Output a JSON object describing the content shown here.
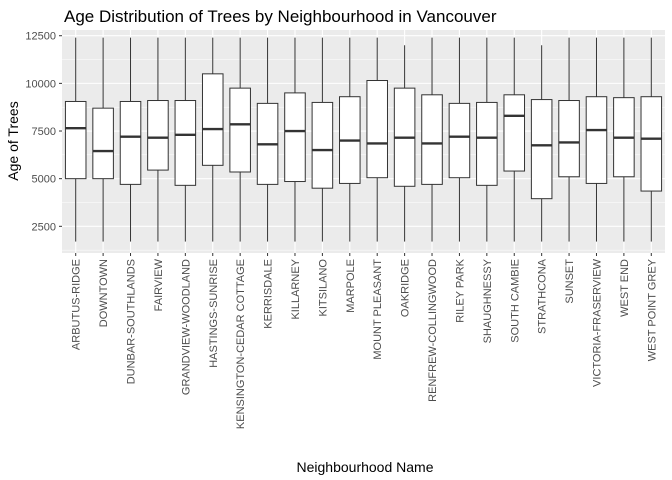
{
  "chart_data": {
    "type": "boxplot",
    "title": "Age Distribution of Trees by Neighbourhood in Vancouver",
    "xlabel": "Neighbourhood Name",
    "ylabel": "Age of Trees",
    "ylim": [
      1100,
      12800
    ],
    "yticks": [
      2500,
      5000,
      7500,
      10000,
      12500
    ],
    "grid": true,
    "legend": "none",
    "colors": {
      "panel": "#ebebeb",
      "grid_major": "#ffffff",
      "box_fill": "#ffffff",
      "box_line": "#333333",
      "tick_text": "#4d4d4d"
    },
    "categories": [
      "ARBUTUS-RIDGE",
      "DOWNTOWN",
      "DUNBAR-SOUTHLANDS",
      "FAIRVIEW",
      "GRANDVIEW-WOODLAND",
      "HASTINGS-SUNRISE",
      "KENSINGTON-CEDAR COTTAGE",
      "KERRISDALE",
      "KILLARNEY",
      "KITSILANO",
      "MARPOLE",
      "MOUNT PLEASANT",
      "OAKRIDGE",
      "RENFREW-COLLINGWOOD",
      "RILEY PARK",
      "SHAUGHNESSY",
      "SOUTH CAMBIE",
      "STRATHCONA",
      "SUNSET",
      "VICTORIA-FRASERVIEW",
      "WEST END",
      "WEST POINT GREY"
    ],
    "boxes": [
      {
        "min": 1700,
        "q1": 5000,
        "median": 7650,
        "q3": 9050,
        "max": 12400
      },
      {
        "min": 1700,
        "q1": 5000,
        "median": 6450,
        "q3": 8700,
        "max": 12400
      },
      {
        "min": 1700,
        "q1": 4700,
        "median": 7200,
        "q3": 9050,
        "max": 12400
      },
      {
        "min": 1700,
        "q1": 5450,
        "median": 7150,
        "q3": 9100,
        "max": 12400
      },
      {
        "min": 1700,
        "q1": 4650,
        "median": 7300,
        "q3": 9100,
        "max": 12400
      },
      {
        "min": 1700,
        "q1": 5700,
        "median": 7600,
        "q3": 10500,
        "max": 12400
      },
      {
        "min": 1700,
        "q1": 5350,
        "median": 7850,
        "q3": 9750,
        "max": 12400
      },
      {
        "min": 1700,
        "q1": 4700,
        "median": 6800,
        "q3": 8950,
        "max": 12400
      },
      {
        "min": 1700,
        "q1": 4850,
        "median": 7500,
        "q3": 9500,
        "max": 12400
      },
      {
        "min": 1700,
        "q1": 4500,
        "median": 6500,
        "q3": 9000,
        "max": 12400
      },
      {
        "min": 1700,
        "q1": 4750,
        "median": 7000,
        "q3": 9300,
        "max": 12400
      },
      {
        "min": 1700,
        "q1": 5050,
        "median": 6850,
        "q3": 10150,
        "max": 12400
      },
      {
        "min": 1700,
        "q1": 4600,
        "median": 7150,
        "q3": 9750,
        "max": 12000
      },
      {
        "min": 1700,
        "q1": 4700,
        "median": 6850,
        "q3": 9400,
        "max": 12400
      },
      {
        "min": 1700,
        "q1": 5050,
        "median": 7200,
        "q3": 8950,
        "max": 12400
      },
      {
        "min": 1700,
        "q1": 4650,
        "median": 7150,
        "q3": 9000,
        "max": 12400
      },
      {
        "min": 1700,
        "q1": 5400,
        "median": 8300,
        "q3": 9400,
        "max": 12400
      },
      {
        "min": 1700,
        "q1": 3950,
        "median": 6750,
        "q3": 9150,
        "max": 12000
      },
      {
        "min": 1700,
        "q1": 5100,
        "median": 6900,
        "q3": 9100,
        "max": 12400
      },
      {
        "min": 1700,
        "q1": 4750,
        "median": 7550,
        "q3": 9300,
        "max": 12400
      },
      {
        "min": 1700,
        "q1": 5100,
        "median": 7150,
        "q3": 9250,
        "max": 12400
      },
      {
        "min": 1700,
        "q1": 4350,
        "median": 7100,
        "q3": 9300,
        "max": 12400
      }
    ]
  }
}
